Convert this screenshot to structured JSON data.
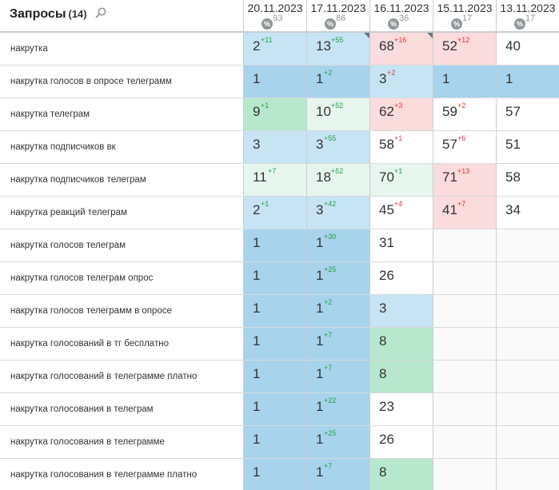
{
  "header": {
    "title": "Запросы",
    "count": "(14)",
    "search_icon": "search-icon"
  },
  "columns": [
    {
      "date": "20.11.2023",
      "percent": "93",
      "icon": "percent-icon"
    },
    {
      "date": "17.11.2023",
      "percent": "86",
      "icon": "percent-icon"
    },
    {
      "date": "16.11.2023",
      "percent": "36",
      "icon": "percent-icon"
    },
    {
      "date": "15.11.2023",
      "percent": "17",
      "icon": "percent-icon"
    },
    {
      "date": "13.11.2023",
      "percent": "17",
      "icon": "percent-icon"
    }
  ],
  "colors": {
    "blue": "#a8d3ec",
    "lightblue": "#c7e4f4",
    "green": "#b7e8cd",
    "palegreen": "#e6f6ee",
    "pink": "#fbdcdc",
    "up": "#1da24a",
    "down": "#e0393e"
  },
  "rows": [
    {
      "query": "накрутка",
      "cells": [
        {
          "pos": "2",
          "delta": "+11",
          "dir": "up",
          "bg": "lightblue"
        },
        {
          "pos": "13",
          "delta": "+55",
          "dir": "up",
          "bg": "lightblue",
          "corner": true
        },
        {
          "pos": "68",
          "delta": "+16",
          "dir": "down",
          "bg": "pink",
          "corner": true
        },
        {
          "pos": "52",
          "delta": "+12",
          "dir": "down",
          "bg": "pink"
        },
        {
          "pos": "40",
          "delta": "",
          "dir": "",
          "bg": "white"
        }
      ]
    },
    {
      "query": "накрутка голосов в опросе телеграмм",
      "cells": [
        {
          "pos": "1",
          "delta": "",
          "dir": "",
          "bg": "blue"
        },
        {
          "pos": "1",
          "delta": "+2",
          "dir": "up",
          "bg": "blue"
        },
        {
          "pos": "3",
          "delta": "+2",
          "dir": "down",
          "bg": "lightblue"
        },
        {
          "pos": "1",
          "delta": "",
          "dir": "",
          "bg": "blue"
        },
        {
          "pos": "1",
          "delta": "",
          "dir": "",
          "bg": "blue"
        }
      ]
    },
    {
      "query": "накрутка телеграм",
      "cells": [
        {
          "pos": "9",
          "delta": "+1",
          "dir": "up",
          "bg": "green"
        },
        {
          "pos": "10",
          "delta": "+52",
          "dir": "up",
          "bg": "palegreen"
        },
        {
          "pos": "62",
          "delta": "+3",
          "dir": "down",
          "bg": "pink"
        },
        {
          "pos": "59",
          "delta": "+2",
          "dir": "down",
          "bg": "white"
        },
        {
          "pos": "57",
          "delta": "",
          "dir": "",
          "bg": "white"
        }
      ]
    },
    {
      "query": "накрутка подписчиков вк",
      "cells": [
        {
          "pos": "3",
          "delta": "",
          "dir": "",
          "bg": "lightblue"
        },
        {
          "pos": "3",
          "delta": "+55",
          "dir": "up",
          "bg": "lightblue"
        },
        {
          "pos": "58",
          "delta": "+1",
          "dir": "down",
          "bg": "white"
        },
        {
          "pos": "57",
          "delta": "+6",
          "dir": "down",
          "bg": "white"
        },
        {
          "pos": "51",
          "delta": "",
          "dir": "",
          "bg": "white"
        }
      ]
    },
    {
      "query": "накрутка подписчиков телеграм",
      "cells": [
        {
          "pos": "11",
          "delta": "+7",
          "dir": "up",
          "bg": "palegreen"
        },
        {
          "pos": "18",
          "delta": "+52",
          "dir": "up",
          "bg": "palegreen"
        },
        {
          "pos": "70",
          "delta": "+1",
          "dir": "up",
          "bg": "palegreen"
        },
        {
          "pos": "71",
          "delta": "+13",
          "dir": "down",
          "bg": "pink"
        },
        {
          "pos": "58",
          "delta": "",
          "dir": "",
          "bg": "white"
        }
      ]
    },
    {
      "query": "накрутка реакций телеграм",
      "cells": [
        {
          "pos": "2",
          "delta": "+1",
          "dir": "up",
          "bg": "lightblue"
        },
        {
          "pos": "3",
          "delta": "+42",
          "dir": "up",
          "bg": "lightblue"
        },
        {
          "pos": "45",
          "delta": "+4",
          "dir": "down",
          "bg": "white"
        },
        {
          "pos": "41",
          "delta": "+7",
          "dir": "down",
          "bg": "pink"
        },
        {
          "pos": "34",
          "delta": "",
          "dir": "",
          "bg": "white"
        }
      ]
    },
    {
      "query": "накрутка голосов телеграм",
      "cells": [
        {
          "pos": "1",
          "delta": "",
          "dir": "",
          "bg": "blue"
        },
        {
          "pos": "1",
          "delta": "+30",
          "dir": "up",
          "bg": "blue"
        },
        {
          "pos": "31",
          "delta": "",
          "dir": "",
          "bg": "white"
        },
        {
          "pos": "",
          "delta": "",
          "dir": "",
          "bg": "empty"
        },
        {
          "pos": "",
          "delta": "",
          "dir": "",
          "bg": "empty"
        }
      ]
    },
    {
      "query": "накрутка голосов телеграм опрос",
      "cells": [
        {
          "pos": "1",
          "delta": "",
          "dir": "",
          "bg": "blue"
        },
        {
          "pos": "1",
          "delta": "+25",
          "dir": "up",
          "bg": "blue"
        },
        {
          "pos": "26",
          "delta": "",
          "dir": "",
          "bg": "white"
        },
        {
          "pos": "",
          "delta": "",
          "dir": "",
          "bg": "empty"
        },
        {
          "pos": "",
          "delta": "",
          "dir": "",
          "bg": "empty"
        }
      ]
    },
    {
      "query": "накрутка голосов телеграмм в опросе",
      "cells": [
        {
          "pos": "1",
          "delta": "",
          "dir": "",
          "bg": "blue"
        },
        {
          "pos": "1",
          "delta": "+2",
          "dir": "up",
          "bg": "blue"
        },
        {
          "pos": "3",
          "delta": "",
          "dir": "",
          "bg": "lightblue"
        },
        {
          "pos": "",
          "delta": "",
          "dir": "",
          "bg": "empty"
        },
        {
          "pos": "",
          "delta": "",
          "dir": "",
          "bg": "empty"
        }
      ]
    },
    {
      "query": "накрутка голосований в тг бесплатно",
      "cells": [
        {
          "pos": "1",
          "delta": "",
          "dir": "",
          "bg": "blue"
        },
        {
          "pos": "1",
          "delta": "+7",
          "dir": "up",
          "bg": "blue"
        },
        {
          "pos": "8",
          "delta": "",
          "dir": "",
          "bg": "green"
        },
        {
          "pos": "",
          "delta": "",
          "dir": "",
          "bg": "empty"
        },
        {
          "pos": "",
          "delta": "",
          "dir": "",
          "bg": "empty"
        }
      ]
    },
    {
      "query": "накрутка голосований в телеграмме платно",
      "cells": [
        {
          "pos": "1",
          "delta": "",
          "dir": "",
          "bg": "blue"
        },
        {
          "pos": "1",
          "delta": "+7",
          "dir": "up",
          "bg": "blue"
        },
        {
          "pos": "8",
          "delta": "",
          "dir": "",
          "bg": "green"
        },
        {
          "pos": "",
          "delta": "",
          "dir": "",
          "bg": "empty"
        },
        {
          "pos": "",
          "delta": "",
          "dir": "",
          "bg": "empty"
        }
      ]
    },
    {
      "query": "накрутка голосования в телеграм",
      "cells": [
        {
          "pos": "1",
          "delta": "",
          "dir": "",
          "bg": "blue"
        },
        {
          "pos": "1",
          "delta": "+22",
          "dir": "up",
          "bg": "blue"
        },
        {
          "pos": "23",
          "delta": "",
          "dir": "",
          "bg": "white"
        },
        {
          "pos": "",
          "delta": "",
          "dir": "",
          "bg": "empty"
        },
        {
          "pos": "",
          "delta": "",
          "dir": "",
          "bg": "empty"
        }
      ]
    },
    {
      "query": "накрутка голосования в телеграмме",
      "cells": [
        {
          "pos": "1",
          "delta": "",
          "dir": "",
          "bg": "blue"
        },
        {
          "pos": "1",
          "delta": "+25",
          "dir": "up",
          "bg": "blue"
        },
        {
          "pos": "26",
          "delta": "",
          "dir": "",
          "bg": "white"
        },
        {
          "pos": "",
          "delta": "",
          "dir": "",
          "bg": "empty"
        },
        {
          "pos": "",
          "delta": "",
          "dir": "",
          "bg": "empty"
        }
      ]
    },
    {
      "query": "накрутка голосования в телеграмме платно",
      "cells": [
        {
          "pos": "1",
          "delta": "",
          "dir": "",
          "bg": "blue"
        },
        {
          "pos": "1",
          "delta": "+7",
          "dir": "up",
          "bg": "blue"
        },
        {
          "pos": "8",
          "delta": "",
          "dir": "",
          "bg": "green"
        },
        {
          "pos": "",
          "delta": "",
          "dir": "",
          "bg": "empty"
        },
        {
          "pos": "",
          "delta": "",
          "dir": "",
          "bg": "empty"
        }
      ]
    }
  ]
}
